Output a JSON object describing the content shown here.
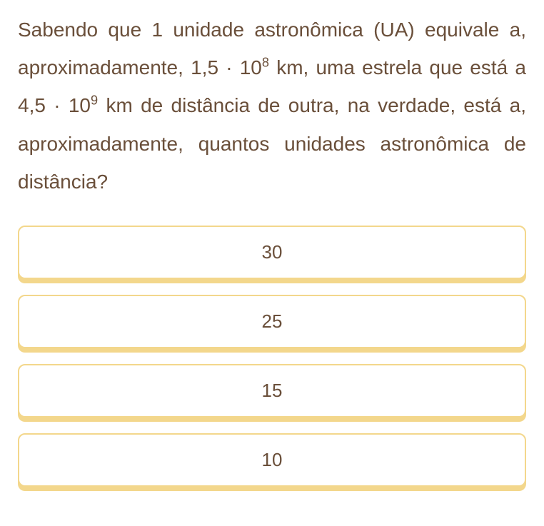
{
  "question": {
    "text_parts": {
      "p1": "Sabendo que 1 unidade astronômica (UA) equivale a, aproximadamente, 1,5 · 10",
      "sup1": "8",
      "p2": " km, uma estrela que está a 4,5 · 10",
      "sup2": "9",
      "p3": " km de distância de outra, na verdade, está a, aproximadamente, quantos unidades astronômica de distância?"
    }
  },
  "options": [
    {
      "label": "30"
    },
    {
      "label": "25"
    },
    {
      "label": "15"
    },
    {
      "label": "10"
    }
  ],
  "styling": {
    "text_color": "#6a4f3a",
    "option_border_color": "#f3d78c",
    "option_shadow_color": "#f3d78c",
    "option_background": "#ffffff",
    "page_background": "#ffffff",
    "question_fontsize": 28,
    "option_fontsize": 26,
    "border_radius": 10
  }
}
